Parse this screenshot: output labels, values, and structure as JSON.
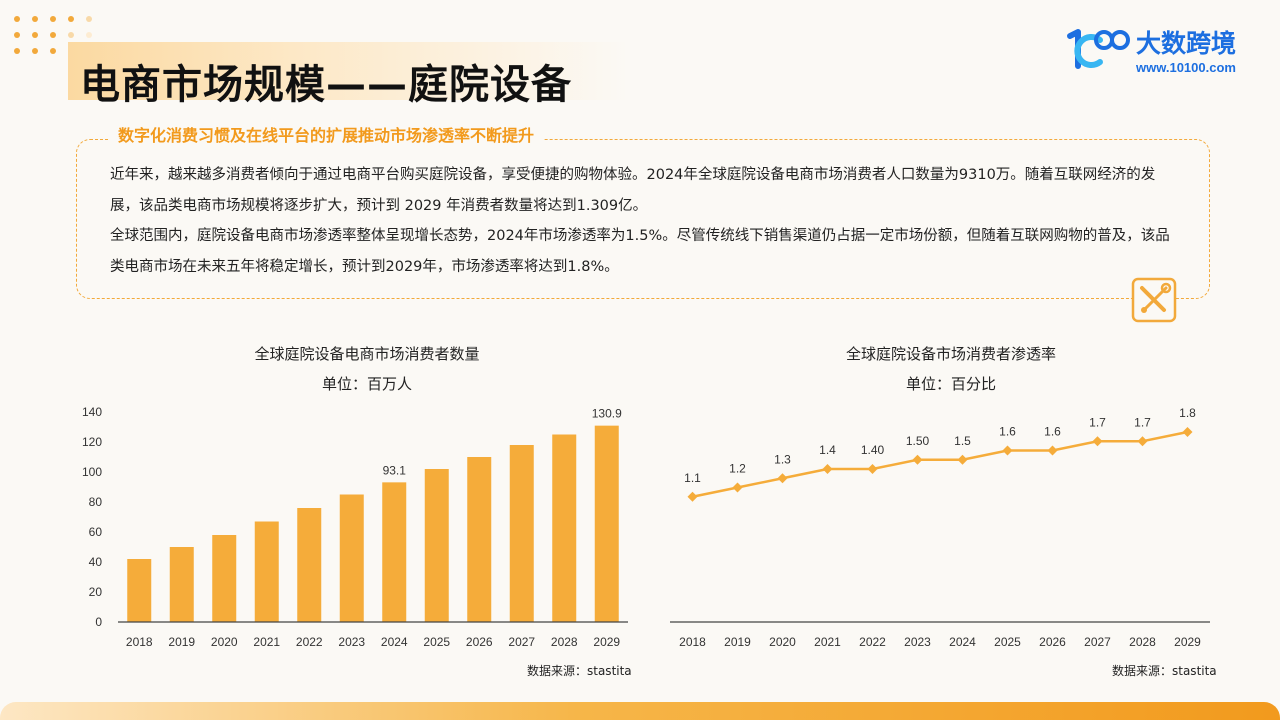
{
  "header": {
    "title": "电商市场规模——庭院设备",
    "logo_name": "大数跨境",
    "logo_url": "www.10100.com"
  },
  "summary": {
    "subtitle": "数字化消费习惯及在线平台的扩展推动市场渗透率不断提升",
    "paragraph1": "近年来，越来越多消费者倾向于通过电商平台购买庭院设备，享受便捷的购物体验。2024年全球庭院设备电商市场消费者人口数量为9310万。随着互联网经济的发展，该品类电商市场规模将逐步扩大，预计到 2029 年消费者数量将达到1.309亿。",
    "paragraph2": "全球范围内，庭院设备电商市场渗透率整体呈现增长态势，2024年市场渗透率为1.5%。尽管传统线下销售渠道仍占据一定市场份额，但随着互联网购物的普及，该品类电商市场在未来五年将稳定增长，预计到2029年，市场渗透率将达到1.8%。"
  },
  "colors": {
    "accent": "#f5ac3a",
    "title_accent": "#f29a1d",
    "brand": "#1d6fe0"
  },
  "chart_data": [
    {
      "type": "bar",
      "title": "全球庭院设备电商市场消费者数量",
      "subtitle": "单位：百万人",
      "categories": [
        "2018",
        "2019",
        "2020",
        "2021",
        "2022",
        "2023",
        "2024",
        "2025",
        "2026",
        "2027",
        "2028",
        "2029"
      ],
      "values": [
        42,
        50,
        58,
        67,
        76,
        85,
        93.1,
        102,
        110,
        118,
        125,
        130.9
      ],
      "data_labels": {
        "6": "93.1",
        "11": "130.9"
      },
      "ylim": [
        0,
        140
      ],
      "yticks": [
        0,
        20,
        40,
        60,
        80,
        100,
        120,
        140
      ],
      "color": "#f5ac3a",
      "source": "数据来源：stastita"
    },
    {
      "type": "line",
      "title": "全球庭院设备市场消费者渗透率",
      "subtitle": "单位：百分比",
      "categories": [
        "2018",
        "2019",
        "2020",
        "2021",
        "2022",
        "2023",
        "2024",
        "2025",
        "2026",
        "2027",
        "2028",
        "2029"
      ],
      "values": [
        1.1,
        1.2,
        1.3,
        1.4,
        1.4,
        1.5,
        1.5,
        1.6,
        1.6,
        1.7,
        1.7,
        1.8
      ],
      "data_labels": [
        "1.1",
        "1.2",
        "1.3",
        "1.4",
        "1.40",
        "1.50",
        "1.5",
        "1.6",
        "1.6",
        "1.7",
        "1.7",
        "1.8"
      ],
      "color": "#f5ac3a",
      "source": "数据来源：stastita"
    }
  ]
}
